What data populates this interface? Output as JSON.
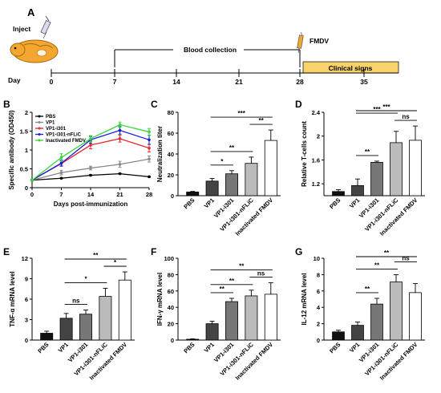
{
  "panel_labels": [
    "A",
    "B",
    "C",
    "D",
    "E",
    "F",
    "G"
  ],
  "timeline": {
    "inject_label": "Inject",
    "day_label": "Day",
    "days": [
      "0",
      "7",
      "14",
      "21",
      "28",
      "35"
    ],
    "blood_collection_label": "Blood collection",
    "challenge_label": "FMDV",
    "clinical_signs_label": "Clinical signs",
    "colors": {
      "clinical_box": "#f8d36a"
    }
  },
  "chart_data": [
    {
      "panel": "B",
      "type": "line",
      "ylabel": "Specific antibody (OD450)",
      "xlabel": "Days post-immunization",
      "x": [
        0,
        7,
        14,
        21,
        28
      ],
      "xlim": [
        0,
        28
      ],
      "ylim": [
        0,
        2.0
      ],
      "yticks": [
        0,
        0.5,
        1.0,
        1.5,
        2.0
      ],
      "xticks": [
        0,
        7,
        14,
        21,
        28
      ],
      "legend_position": "top-left",
      "series": [
        {
          "name": "PBS",
          "color": "#000000",
          "values": [
            0.2,
            0.25,
            0.33,
            0.37,
            0.29
          ],
          "errors": [
            0.01,
            0.01,
            0.01,
            0.01,
            0.01
          ]
        },
        {
          "name": "VP1",
          "color": "#888888",
          "values": [
            0.2,
            0.4,
            0.52,
            0.62,
            0.76
          ],
          "errors": [
            0.02,
            0.06,
            0.05,
            0.08,
            0.08
          ]
        },
        {
          "name": "VP1-i301",
          "color": "#e8262b",
          "values": [
            0.2,
            0.64,
            1.13,
            1.3,
            1.05
          ],
          "errors": [
            0.02,
            0.06,
            0.1,
            0.09,
            0.1
          ]
        },
        {
          "name": "VP1-i301-nFLiC",
          "color": "#1b1bd8",
          "values": [
            0.2,
            0.65,
            1.27,
            1.52,
            1.27
          ],
          "errors": [
            0.02,
            0.08,
            0.09,
            0.1,
            0.12
          ]
        },
        {
          "name": "Inactivated FMDV",
          "color": "#35d63b",
          "values": [
            0.2,
            0.8,
            1.3,
            1.67,
            1.48
          ],
          "errors": [
            0.02,
            0.1,
            0.08,
            0.07,
            0.09
          ]
        }
      ]
    },
    {
      "panel": "C",
      "type": "bar",
      "ylabel": "Neutralization titer",
      "categories": [
        "PBS",
        "VP1",
        "VP1-i301",
        "VP1-i301-nFLiC",
        "Inactivated FMDV"
      ],
      "values": [
        3.5,
        14,
        21,
        31,
        53
      ],
      "errors": [
        0.6,
        2.5,
        3,
        6,
        10
      ],
      "ylim": [
        0,
        80
      ],
      "yticks": [
        0,
        20,
        40,
        60,
        80
      ],
      "significance": [
        {
          "from": 1,
          "to": 2,
          "label": "*"
        },
        {
          "from": 1,
          "to": 3,
          "label": "**"
        },
        {
          "from": 3,
          "to": 4,
          "label": "**"
        },
        {
          "from": 1,
          "to": 4,
          "label": "***"
        }
      ]
    },
    {
      "panel": "D",
      "type": "bar",
      "ylabel": "Relative T-cells count",
      "categories": [
        "PBS",
        "VP1",
        "VP1-i301",
        "VP1-i301-nFLiC",
        "Inactivated FMDV"
      ],
      "values": [
        1.07,
        1.17,
        1.56,
        1.89,
        1.93
      ],
      "errors": [
        0.03,
        0.11,
        0.02,
        0.19,
        0.24
      ],
      "ylim": [
        1.0,
        2.4
      ],
      "yticks": [
        1.2,
        1.6,
        2.0,
        2.4
      ],
      "significance": [
        {
          "from": 1,
          "to": 2,
          "label": "**"
        },
        {
          "from": 3,
          "to": 4,
          "label": "ns"
        },
        {
          "from": 1,
          "to": 3,
          "label": "***"
        },
        {
          "from": 1,
          "to": 4,
          "label": "***"
        }
      ]
    },
    {
      "panel": "E",
      "type": "bar",
      "ylabel": "TNF-α mRNA level",
      "categories": [
        "PBS",
        "VP1",
        "VP1-i301",
        "VP1-i301-nFLiC",
        "Inactivated FMDV"
      ],
      "values": [
        1.0,
        3.2,
        3.8,
        6.4,
        8.8
      ],
      "errors": [
        0.3,
        0.7,
        0.6,
        1.2,
        1.2
      ],
      "ylim": [
        0,
        12
      ],
      "yticks": [
        0,
        3,
        6,
        9,
        12
      ],
      "significance": [
        {
          "from": 1,
          "to": 2,
          "label": "ns"
        },
        {
          "from": 1,
          "to": 3,
          "label": "*"
        },
        {
          "from": 3,
          "to": 4,
          "label": "*"
        },
        {
          "from": 1,
          "to": 4,
          "label": "**"
        }
      ]
    },
    {
      "panel": "F",
      "type": "bar",
      "ylabel": "IFN-γ mRNA level",
      "categories": [
        "PBS",
        "VP1",
        "VP1-i301",
        "VP1-i301-nFLiC",
        "Inactivated FMDV"
      ],
      "values": [
        1.0,
        20,
        47,
        54,
        56
      ],
      "errors": [
        0.5,
        3,
        4,
        7,
        14
      ],
      "ylim": [
        0,
        100
      ],
      "yticks": [
        0,
        20,
        40,
        60,
        80,
        100
      ],
      "significance": [
        {
          "from": 1,
          "to": 2,
          "label": "**"
        },
        {
          "from": 1,
          "to": 3,
          "label": "**"
        },
        {
          "from": 3,
          "to": 4,
          "label": "ns"
        },
        {
          "from": 1,
          "to": 4,
          "label": "**"
        }
      ]
    },
    {
      "panel": "G",
      "type": "bar",
      "ylabel": "IL-12 mRNA level",
      "categories": [
        "PBS",
        "VP1",
        "VP1-i301",
        "VP1-i301-nFLiC",
        "Inactivated FMDV"
      ],
      "values": [
        1.0,
        1.8,
        4.4,
        7.1,
        5.8
      ],
      "errors": [
        0.2,
        0.4,
        0.7,
        0.9,
        1.1
      ],
      "ylim": [
        0,
        10
      ],
      "yticks": [
        0,
        2,
        4,
        6,
        8,
        10
      ],
      "significance": [
        {
          "from": 1,
          "to": 2,
          "label": "**"
        },
        {
          "from": 1,
          "to": 3,
          "label": "**"
        },
        {
          "from": 3,
          "to": 4,
          "label": "ns"
        },
        {
          "from": 1,
          "to": 4,
          "label": "**"
        }
      ]
    }
  ],
  "bar_fills": [
    "#111111",
    "#444444",
    "#777777",
    "#bbbbbb",
    "#ffffff"
  ]
}
